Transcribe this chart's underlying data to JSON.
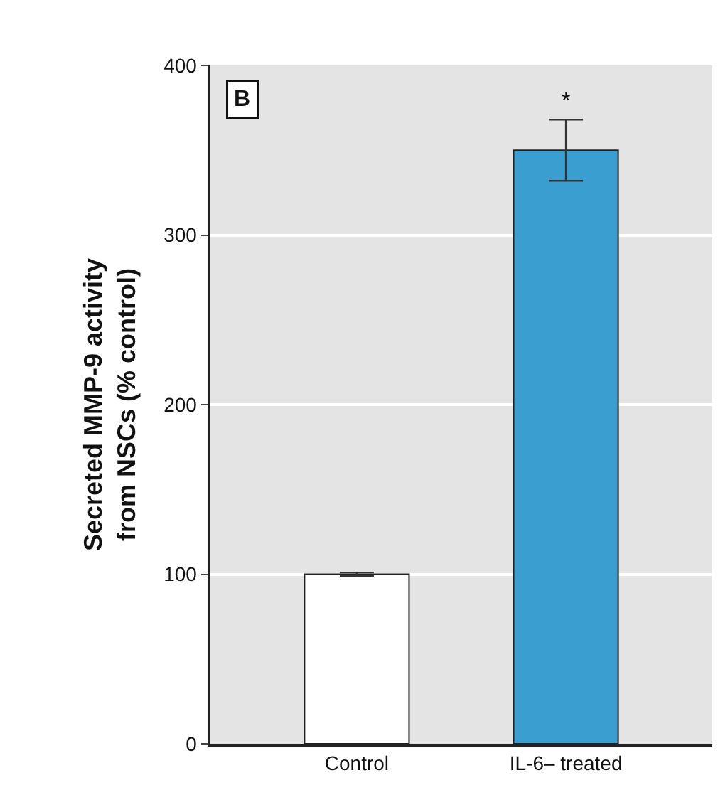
{
  "chart_data": {
    "type": "bar",
    "ylabel": "Secreted MMP-9 activity\nfrom NSCs (% control)",
    "categories": [
      "Control",
      "IL-6– treated"
    ],
    "values": [
      100,
      350
    ],
    "colors": [
      "#ffffff",
      "#3a9fd0"
    ],
    "errors": [
      1,
      18
    ],
    "ylim": [
      0,
      400
    ],
    "yticks": [
      0,
      100,
      200,
      300,
      400
    ],
    "grid": "y",
    "annotations": [
      "B",
      "*"
    ]
  }
}
